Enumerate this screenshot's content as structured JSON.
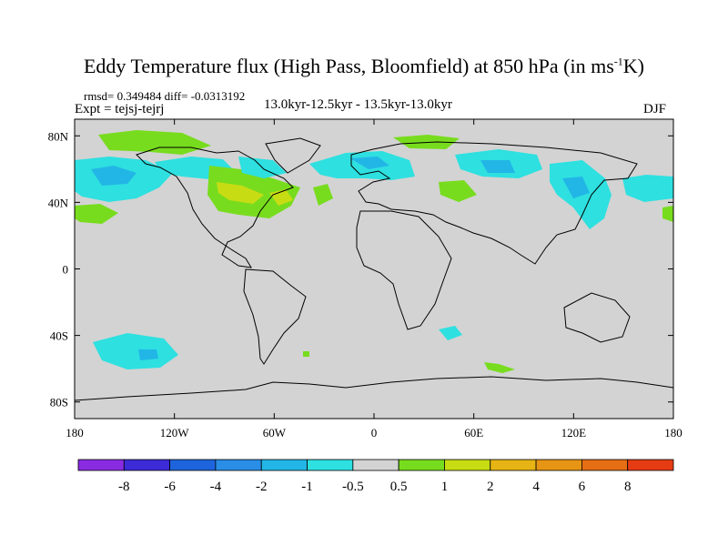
{
  "title": {
    "main": "Eddy Temperature flux (High Pass, Bloomfield) at 850 hPa (in ms",
    "exponent": "-1",
    "suffix": "K)"
  },
  "stats": "rmsd= 0.349484 diff= -0.0313192",
  "expt": "Expt = tejsj-tejrj",
  "subtitle": "13.0kyr-12.5kyr - 13.5kyr-13.0kyr",
  "season": "DJF",
  "map": {
    "lon_range": [
      -180,
      180
    ],
    "lat_range": [
      -90,
      90
    ],
    "background_color": "#d3d3d3",
    "x_ticks": [
      {
        "value": -180,
        "label": "180"
      },
      {
        "value": -120,
        "label": "120W"
      },
      {
        "value": -60,
        "label": "60W"
      },
      {
        "value": 0,
        "label": "0"
      },
      {
        "value": 60,
        "label": "60E"
      },
      {
        "value": 120,
        "label": "120E"
      },
      {
        "value": 180,
        "label": "180"
      }
    ],
    "y_ticks": [
      {
        "value": 80,
        "label": "80N"
      },
      {
        "value": 40,
        "label": "40N"
      },
      {
        "value": 0,
        "label": "0"
      },
      {
        "value": -40,
        "label": "40S"
      },
      {
        "value": -80,
        "label": "80S"
      }
    ]
  },
  "colorbar": {
    "colors": [
      "#8a2be2",
      "#3c2bd6",
      "#1e64dc",
      "#2b8ee6",
      "#22b6e6",
      "#2ee0e0",
      "#d3d3d3",
      "#78dc1e",
      "#c8dc14",
      "#e6b414",
      "#e69614",
      "#e66e14",
      "#e63c14"
    ],
    "labels": [
      "-8",
      "-6",
      "-4",
      "-2",
      "-1",
      "-0.5",
      "0.5",
      "1",
      "2",
      "4",
      "6",
      "8"
    ]
  }
}
